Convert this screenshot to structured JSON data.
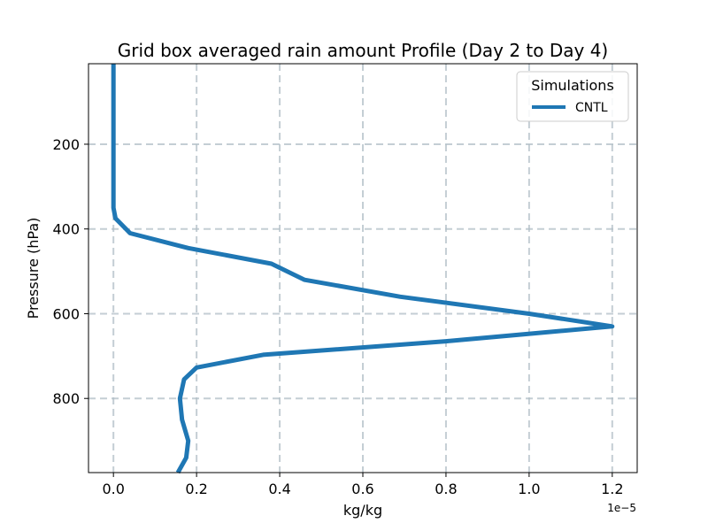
{
  "chart_data": {
    "type": "line",
    "orientation": "vertical-profile",
    "title": "Grid box averaged rain amount Profile (Day 2 to Day 4)",
    "xlabel": "kg/kg",
    "ylabel": "Pressure (hPa)",
    "x_offset_label": "1e−5",
    "x_scale_factor": 1e-05,
    "xlim": [
      -0.06,
      1.26
    ],
    "ylim": [
      975,
      10
    ],
    "y_inverted": true,
    "xticks": [
      0.0,
      0.2,
      0.4,
      0.6,
      0.8,
      1.0,
      1.2
    ],
    "xtick_labels": [
      "0.0",
      "0.2",
      "0.4",
      "0.6",
      "0.8",
      "1.0",
      "1.2"
    ],
    "yticks": [
      200,
      400,
      600,
      800
    ],
    "ytick_labels": [
      "200",
      "400",
      "600",
      "800"
    ],
    "grid": true,
    "legend": {
      "title": "Simulations",
      "position": "top-right"
    },
    "series": [
      {
        "name": "CNTL",
        "color": "#1f77b4",
        "points": [
          {
            "x": 0.0,
            "p": 10
          },
          {
            "x": 0.0,
            "p": 100
          },
          {
            "x": 0.0,
            "p": 200
          },
          {
            "x": 0.0,
            "p": 300
          },
          {
            "x": 0.0,
            "p": 350
          },
          {
            "x": 0.005,
            "p": 375
          },
          {
            "x": 0.04,
            "p": 410
          },
          {
            "x": 0.18,
            "p": 445
          },
          {
            "x": 0.38,
            "p": 482
          },
          {
            "x": 0.46,
            "p": 520
          },
          {
            "x": 0.69,
            "p": 560
          },
          {
            "x": 1.0,
            "p": 600
          },
          {
            "x": 1.2,
            "p": 630
          },
          {
            "x": 0.8,
            "p": 665
          },
          {
            "x": 0.36,
            "p": 697
          },
          {
            "x": 0.2,
            "p": 727
          },
          {
            "x": 0.17,
            "p": 755
          },
          {
            "x": 0.16,
            "p": 800
          },
          {
            "x": 0.165,
            "p": 850
          },
          {
            "x": 0.18,
            "p": 900
          },
          {
            "x": 0.175,
            "p": 940
          },
          {
            "x": 0.155,
            "p": 975
          }
        ]
      }
    ]
  }
}
